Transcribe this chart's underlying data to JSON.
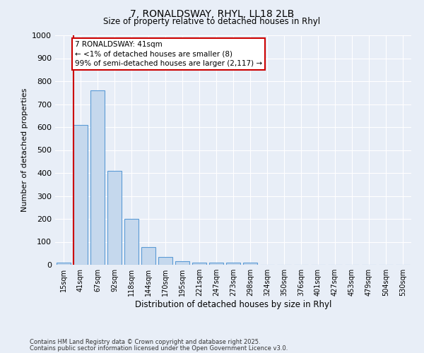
{
  "title1": "7, RONALDSWAY, RHYL, LL18 2LB",
  "title2": "Size of property relative to detached houses in Rhyl",
  "xlabel": "Distribution of detached houses by size in Rhyl",
  "ylabel": "Number of detached properties",
  "categories": [
    "15sqm",
    "41sqm",
    "67sqm",
    "92sqm",
    "118sqm",
    "144sqm",
    "170sqm",
    "195sqm",
    "221sqm",
    "247sqm",
    "273sqm",
    "298sqm",
    "324sqm",
    "350sqm",
    "376sqm",
    "401sqm",
    "427sqm",
    "453sqm",
    "479sqm",
    "504sqm",
    "530sqm"
  ],
  "values": [
    10,
    610,
    760,
    410,
    200,
    78,
    35,
    15,
    10,
    8,
    8,
    8,
    0,
    0,
    0,
    0,
    0,
    0,
    0,
    0,
    0
  ],
  "bar_color": "#c5d8ed",
  "bar_edge_color": "#5b9bd5",
  "redline_index": 1,
  "redline_color": "#cc0000",
  "ylim": [
    0,
    1000
  ],
  "yticks": [
    0,
    100,
    200,
    300,
    400,
    500,
    600,
    700,
    800,
    900,
    1000
  ],
  "annotation_text": "7 RONALDSWAY: 41sqm\n← <1% of detached houses are smaller (8)\n99% of semi-detached houses are larger (2,117) →",
  "annotation_box_color": "#ffffff",
  "annotation_box_edge": "#cc0000",
  "bg_color": "#e8eef7",
  "grid_color": "#ffffff",
  "footnote1": "Contains HM Land Registry data © Crown copyright and database right 2025.",
  "footnote2": "Contains public sector information licensed under the Open Government Licence v3.0."
}
